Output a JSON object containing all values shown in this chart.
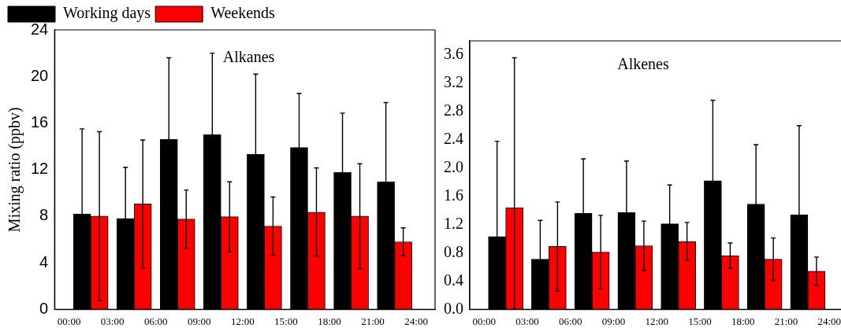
{
  "chart_data": [
    {
      "type": "bar",
      "ylabel": "Mixing ratio (ppbv)",
      "annotations": [
        "Alkanes"
      ],
      "legend": "top left",
      "grid": false,
      "x": [
        1.5,
        4.5,
        7.5,
        10.5,
        13.5,
        16.5,
        19.5,
        22.5
      ],
      "xlim": [
        -1,
        25.3
      ],
      "xticks": [
        {
          "value": 0,
          "label": "00:00"
        },
        {
          "value": 3,
          "label": "03:00"
        },
        {
          "value": 6,
          "label": "06:00"
        },
        {
          "value": 9,
          "label": "09:00"
        },
        {
          "value": 12,
          "label": "12:00"
        },
        {
          "value": 15,
          "label": "15:00"
        },
        {
          "value": 18,
          "label": "18:00"
        },
        {
          "value": 21,
          "label": "21:00"
        },
        {
          "value": 24,
          "label": "24:00"
        }
      ],
      "ylim": [
        0,
        24
      ],
      "yticks": [
        0,
        4,
        8,
        12,
        16,
        20,
        24
      ],
      "series": [
        {
          "name": "Working days",
          "color": "#000000",
          "values": [
            8.2,
            7.8,
            14.6,
            15.0,
            13.3,
            13.9,
            11.75,
            10.95
          ],
          "errors": [
            7.3,
            4.4,
            7.0,
            7.0,
            6.9,
            4.65,
            5.1,
            6.8
          ]
        },
        {
          "name": "Weekends",
          "color": "#ff0000",
          "values": [
            8.0,
            9.05,
            7.75,
            7.95,
            7.15,
            8.35,
            8.0,
            5.8
          ],
          "errors": [
            7.25,
            5.5,
            2.5,
            3.0,
            2.5,
            3.8,
            4.5,
            1.2
          ]
        }
      ]
    },
    {
      "type": "bar",
      "annotations": [
        "Alkenes"
      ],
      "grid": false,
      "x": [
        1.5,
        4.5,
        7.5,
        10.5,
        13.5,
        16.5,
        19.5,
        22.5
      ],
      "xlim": [
        -1,
        25.3
      ],
      "xticks": [
        {
          "value": 0,
          "label": "00:00"
        },
        {
          "value": 3,
          "label": "03:00"
        },
        {
          "value": 6,
          "label": "06:00"
        },
        {
          "value": 9,
          "label": "09:00"
        },
        {
          "value": 12,
          "label": "12:00"
        },
        {
          "value": 15,
          "label": "15:00"
        },
        {
          "value": 18,
          "label": "18:00"
        },
        {
          "value": 21,
          "label": "21:00"
        },
        {
          "value": 24,
          "label": "24:00"
        }
      ],
      "ylim": [
        0,
        3.8
      ],
      "yticks": [
        {
          "value": 0,
          "label": "0.0"
        },
        0.4,
        0.8,
        1.2,
        1.6,
        {
          "value": 2,
          "label": "2.0"
        },
        2.4,
        2.8,
        3.2,
        3.6
      ],
      "series": [
        {
          "color": "#000000",
          "values": [
            1.03,
            0.71,
            1.36,
            1.37,
            1.21,
            1.82,
            1.49,
            1.34
          ],
          "errors": [
            [
              0,
              2.38
            ],
            0.55,
            0.77,
            0.73,
            0.55,
            1.14,
            0.84,
            1.26
          ]
        },
        {
          "color": "#ff0000",
          "values": [
            1.44,
            0.89,
            0.81,
            0.9,
            0.96,
            0.76,
            0.71,
            0.54
          ],
          "errors": [
            [
              0,
              3.56
            ],
            0.63,
            0.52,
            0.35,
            0.27,
            0.18,
            0.3,
            0.2
          ]
        }
      ]
    }
  ]
}
